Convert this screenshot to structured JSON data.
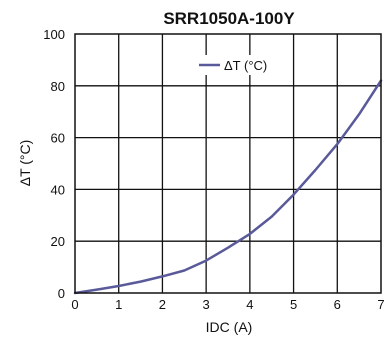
{
  "chart_data": {
    "type": "line",
    "title": "SRR1050A-100Y",
    "xlabel": "IDC (A)",
    "ylabel": "ΔT (°C)",
    "xlim": [
      0,
      7
    ],
    "ylim": [
      0,
      100
    ],
    "x_ticks": [
      "0",
      "1",
      "2",
      "3",
      "4",
      "5",
      "6",
      "7"
    ],
    "y_ticks": [
      "0",
      "20",
      "40",
      "60",
      "80",
      "100"
    ],
    "grid": true,
    "legend_position": "top-center",
    "series": [
      {
        "name": "ΔT  (°C)",
        "color": "#5a5a9a",
        "x": [
          0,
          0.5,
          1,
          1.5,
          2,
          2.5,
          3,
          3.5,
          4,
          4.5,
          5,
          5.5,
          6,
          6.5,
          7
        ],
        "y": [
          0,
          1.3,
          2.7,
          4.4,
          6.4,
          8.7,
          12.5,
          17.5,
          22.8,
          29.5,
          38,
          47.5,
          57.5,
          69,
          82
        ]
      }
    ]
  }
}
